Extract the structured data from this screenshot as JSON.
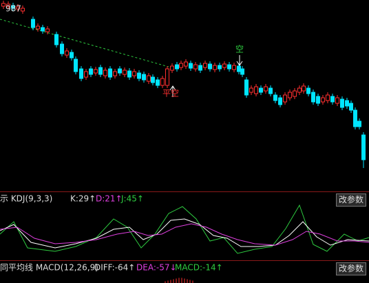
{
  "price_panel": {
    "top_label": "987",
    "signal_short": "空",
    "signal_cover": "平空"
  },
  "kdj_panel": {
    "title": "示 KDJ(9,3,3)",
    "k": "K:29↑",
    "d": "D:21↑",
    "j": "J:45↑",
    "button": "改参数"
  },
  "macd_panel": {
    "title": "同平均线 MACD(12,26,9)",
    "diff": "DIFF:-64↑",
    "dea": "DEA:-57↓",
    "macd": "MACD:-14↑",
    "button": "改参数"
  }
}
